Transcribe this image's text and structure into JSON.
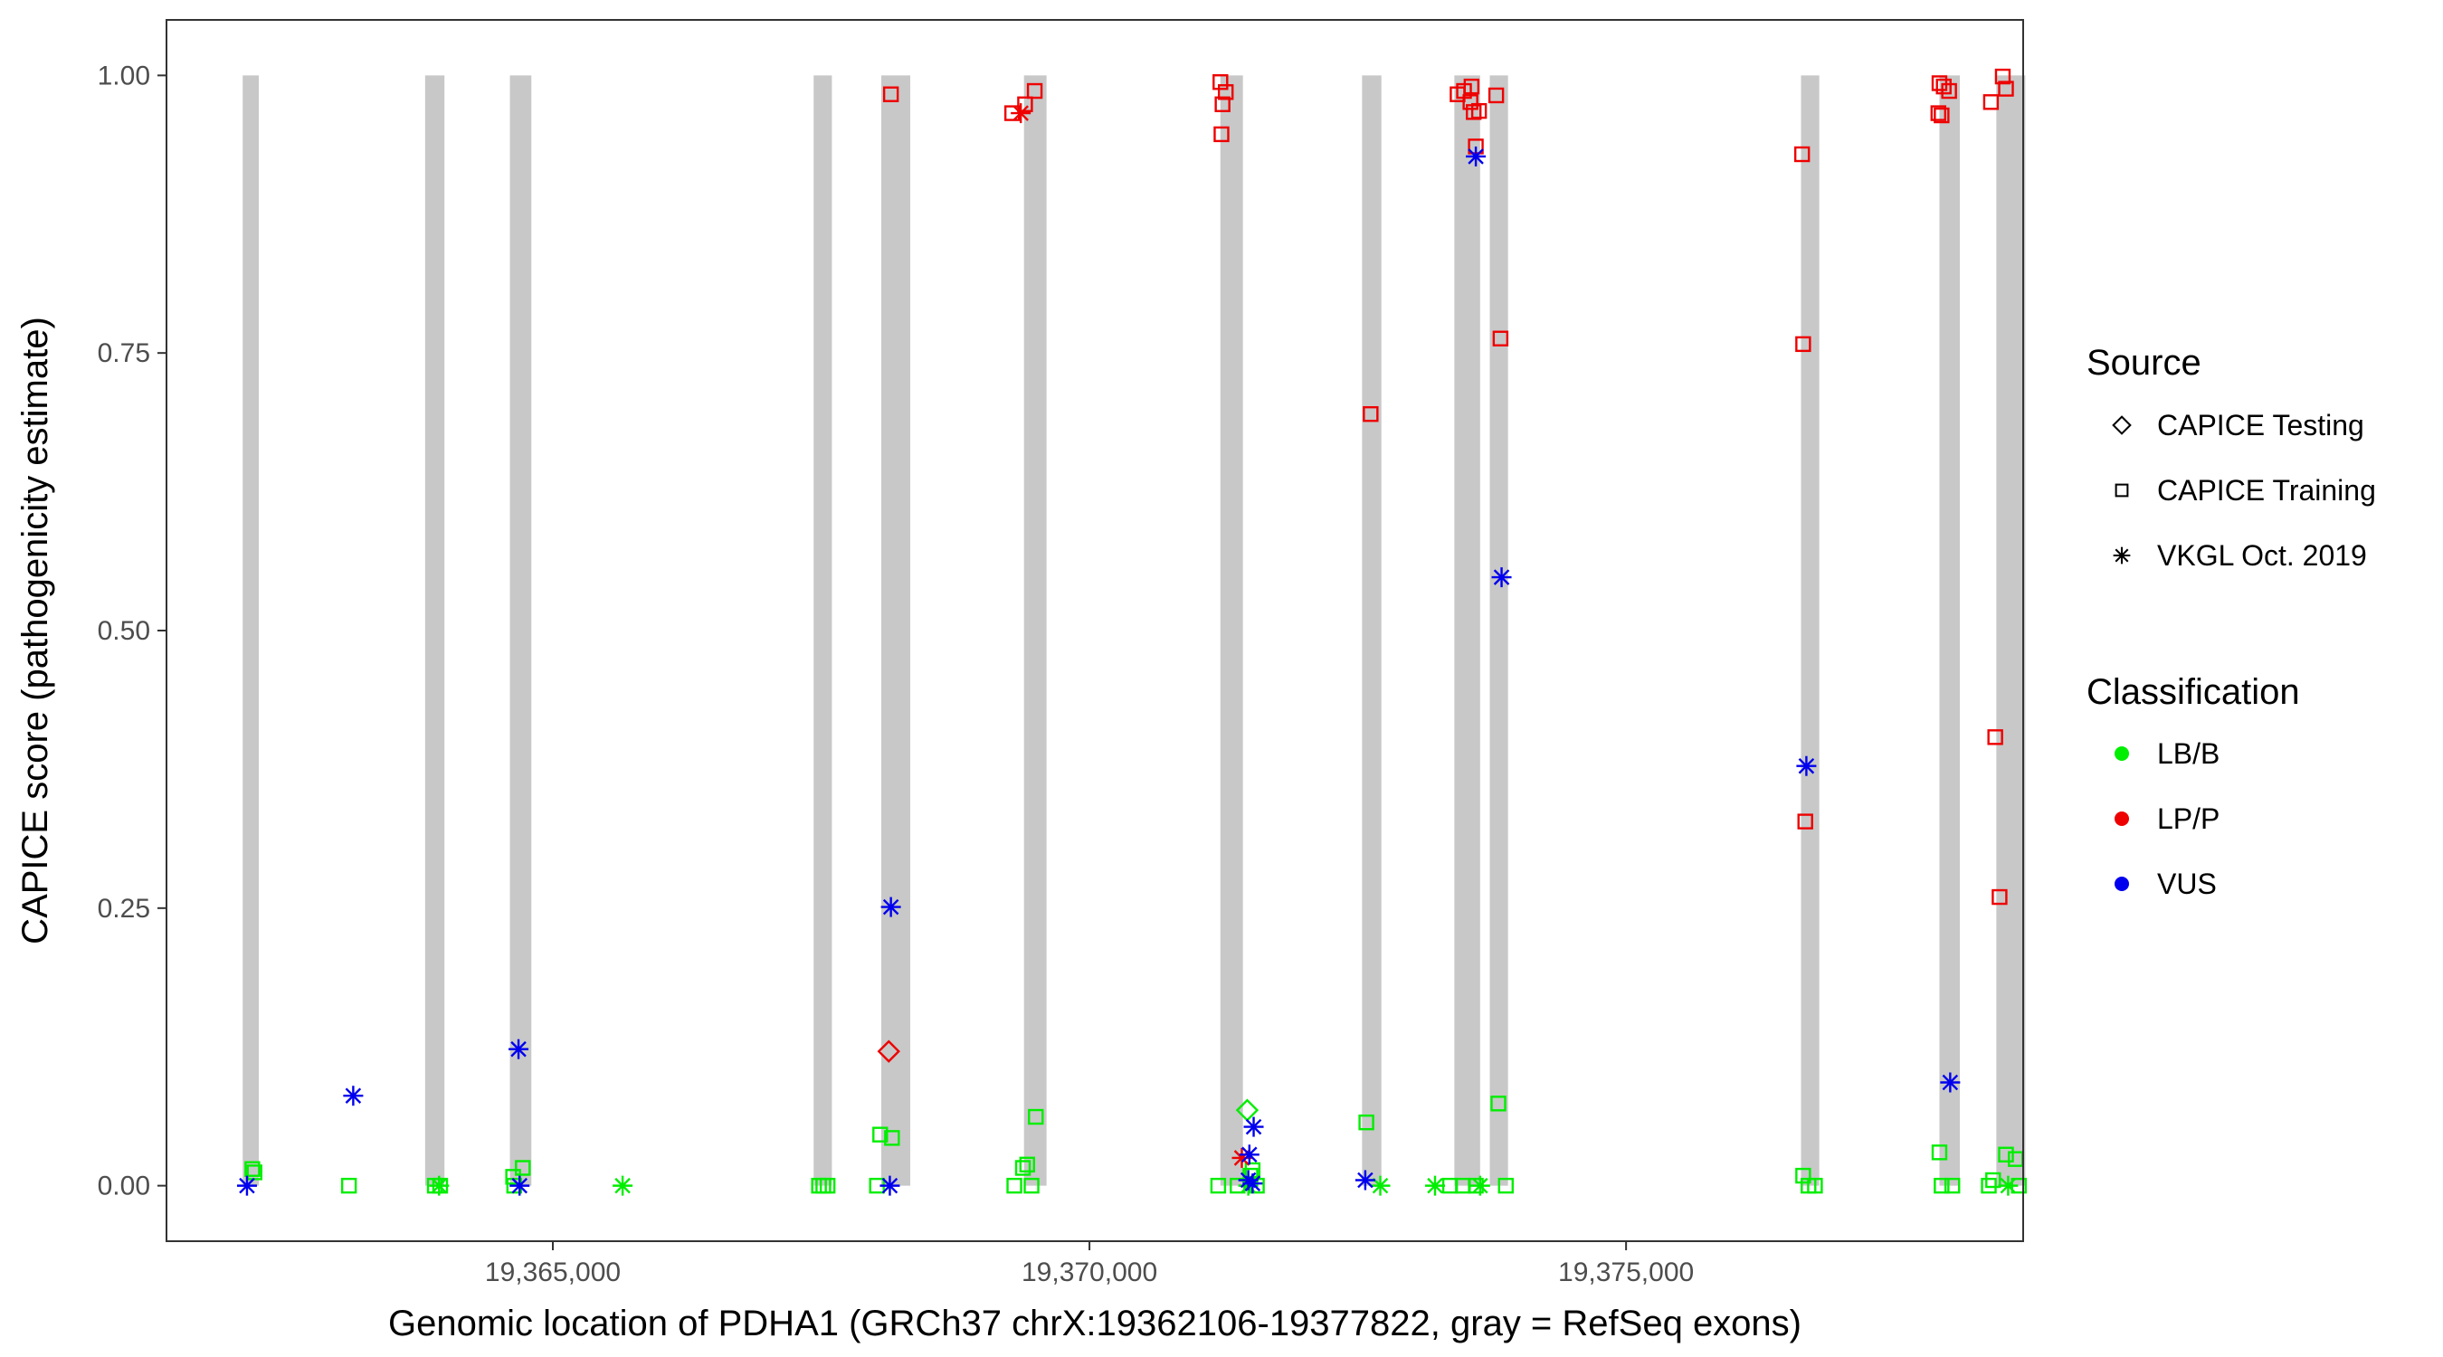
{
  "chart_data": {
    "type": "scatter",
    "xlabel": "Genomic location of PDHA1 (GRCh37 chrX:19362106-19377822, gray = RefSeq exons)",
    "ylabel": "CAPICE score (pathogenicity estimate)",
    "xlim": [
      19361400,
      19378700
    ],
    "ylim": [
      -0.05,
      1.05
    ],
    "x_ticks": [
      19365000,
      19370000,
      19375000
    ],
    "x_tick_labels": [
      "19,365,000",
      "19,370,000",
      "19,375,000"
    ],
    "y_ticks": [
      0,
      0.25,
      0.5,
      0.75,
      1
    ],
    "y_tick_labels": [
      "0.00",
      "0.25",
      "0.50",
      "0.75",
      "1.00"
    ],
    "grid": false,
    "exons": [
      [
        19362110,
        19362260
      ],
      [
        19363810,
        19363990
      ],
      [
        19364600,
        19364800
      ],
      [
        19367430,
        19367600
      ],
      [
        19368060,
        19368330
      ],
      [
        19369390,
        19369600
      ],
      [
        19371220,
        19371430
      ],
      [
        19372540,
        19372720
      ],
      [
        19373400,
        19373640
      ],
      [
        19373730,
        19373900
      ],
      [
        19376630,
        19376800
      ],
      [
        19377920,
        19378110
      ],
      [
        19378450,
        19378720
      ]
    ],
    "exon_color": "#c8c8c8",
    "legend": {
      "placement": "right",
      "source_title": "Source",
      "source_entries": [
        {
          "label": "CAPICE Testing",
          "shape": "diamond"
        },
        {
          "label": "CAPICE Training",
          "shape": "square"
        },
        {
          "label": "VKGL Oct. 2019",
          "shape": "asterisk"
        }
      ],
      "class_title": "Classification",
      "class_entries": [
        {
          "label": "LB/B",
          "color": "#00ee00"
        },
        {
          "label": "LP/P",
          "color": "#ee0000"
        },
        {
          "label": "VUS",
          "color": "#0000ee"
        }
      ]
    },
    "series": [
      {
        "name": "LB/B",
        "source": "CAPICE Training",
        "shape": "square",
        "color": "#00ee00",
        "points": [
          [
            19362200,
            0.015
          ],
          [
            19362220,
            0.012
          ],
          [
            19363100,
            0.0
          ],
          [
            19363950,
            0.0
          ],
          [
            19363900,
            0.0
          ],
          [
            19364630,
            0.008
          ],
          [
            19364720,
            0.016
          ],
          [
            19364640,
            0.0
          ],
          [
            19367480,
            0.0
          ],
          [
            19367520,
            0.0
          ],
          [
            19367560,
            0.0
          ],
          [
            19368050,
            0.046
          ],
          [
            19368160,
            0.043
          ],
          [
            19368020,
            0.0
          ],
          [
            19369300,
            0.0
          ],
          [
            19369380,
            0.016
          ],
          [
            19369420,
            0.019
          ],
          [
            19369460,
            0.0
          ],
          [
            19369500,
            0.062
          ],
          [
            19371200,
            0.0
          ],
          [
            19371380,
            0.0
          ],
          [
            19371500,
            0.009
          ],
          [
            19371520,
            0.014
          ],
          [
            19371560,
            0.0
          ],
          [
            19372580,
            0.057
          ],
          [
            19373360,
            0.0
          ],
          [
            19373480,
            0.0
          ],
          [
            19373600,
            0.0
          ],
          [
            19373810,
            0.074
          ],
          [
            19373880,
            0.0
          ],
          [
            19376650,
            0.009
          ],
          [
            19376700,
            0.0
          ],
          [
            19376760,
            0.0
          ],
          [
            19377920,
            0.03
          ],
          [
            19377940,
            0.0
          ],
          [
            19378040,
            0.0
          ],
          [
            19378380,
            0.0
          ],
          [
            19378420,
            0.005
          ],
          [
            19378540,
            0.028
          ],
          [
            19378630,
            0.024
          ],
          [
            19378660,
            0.0
          ]
        ]
      },
      {
        "name": "LP/P",
        "source": "CAPICE Training",
        "shape": "square",
        "color": "#ee0000",
        "points": [
          [
            19368150,
            0.983
          ],
          [
            19369280,
            0.966
          ],
          [
            19369400,
            0.974
          ],
          [
            19369490,
            0.986
          ],
          [
            19371220,
            0.994
          ],
          [
            19371270,
            0.985
          ],
          [
            19371240,
            0.974
          ],
          [
            19371230,
            0.947
          ],
          [
            19372620,
            0.695
          ],
          [
            19373430,
            0.983
          ],
          [
            19373490,
            0.986
          ],
          [
            19373560,
            0.99
          ],
          [
            19373550,
            0.976
          ],
          [
            19373580,
            0.967
          ],
          [
            19373600,
            0.936
          ],
          [
            19373630,
            0.968
          ],
          [
            19373790,
            0.982
          ],
          [
            19373830,
            0.763
          ],
          [
            19376640,
            0.929
          ],
          [
            19376650,
            0.758
          ],
          [
            19376670,
            0.328
          ],
          [
            19377920,
            0.993
          ],
          [
            19377960,
            0.99
          ],
          [
            19377910,
            0.966
          ],
          [
            19377940,
            0.964
          ],
          [
            19378010,
            0.986
          ],
          [
            19378400,
            0.976
          ],
          [
            19378510,
            0.999
          ],
          [
            19378540,
            0.988
          ],
          [
            19378440,
            0.404
          ],
          [
            19378480,
            0.26
          ]
        ]
      },
      {
        "name": "LB/B",
        "source": "CAPICE Testing",
        "shape": "diamond",
        "color": "#00ee00",
        "points": [
          [
            19371470,
            0.068
          ]
        ]
      },
      {
        "name": "LP/P",
        "source": "CAPICE Testing",
        "shape": "diamond",
        "color": "#ee0000",
        "points": [
          [
            19368130,
            0.121
          ]
        ]
      },
      {
        "name": "LB/B",
        "source": "VKGL Oct. 2019",
        "shape": "asterisk",
        "color": "#00ee00",
        "points": [
          [
            19363940,
            0.0
          ],
          [
            19365650,
            0.0
          ],
          [
            19372710,
            0.0
          ],
          [
            19373220,
            0.0
          ],
          [
            19373640,
            0.0
          ],
          [
            19378560,
            0.0
          ],
          [
            19371480,
            0.0
          ]
        ]
      },
      {
        "name": "LP/P",
        "source": "VKGL Oct. 2019",
        "shape": "asterisk",
        "color": "#ee0000",
        "points": [
          [
            19369360,
            0.966
          ],
          [
            19371420,
            0.025
          ]
        ]
      },
      {
        "name": "VUS",
        "source": "VKGL Oct. 2019",
        "shape": "asterisk",
        "color": "#0000ee",
        "points": [
          [
            19362150,
            0.0
          ],
          [
            19363140,
            0.081
          ],
          [
            19364680,
            0.123
          ],
          [
            19364690,
            0.0
          ],
          [
            19368150,
            0.251
          ],
          [
            19368140,
            0.0
          ],
          [
            19371530,
            0.053
          ],
          [
            19371490,
            0.028
          ],
          [
            19371480,
            0.005
          ],
          [
            19371520,
            0.002
          ],
          [
            19372570,
            0.005
          ],
          [
            19373600,
            0.927
          ],
          [
            19373840,
            0.548
          ],
          [
            19376680,
            0.378
          ],
          [
            19378020,
            0.093
          ]
        ]
      }
    ]
  }
}
